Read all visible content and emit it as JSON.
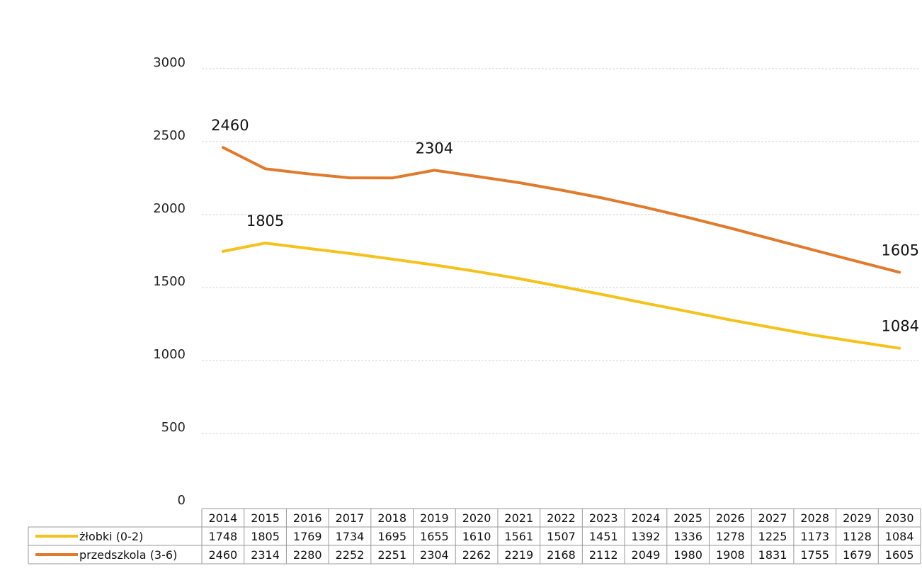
{
  "chart_data": {
    "type": "line",
    "title": "",
    "xlabel": "",
    "ylabel": "",
    "ylim": [
      0,
      3000
    ],
    "yticks": [
      0,
      500,
      1000,
      1500,
      2000,
      2500,
      3000
    ],
    "grid": true,
    "legend": "data-table-left",
    "x": [
      2014,
      2015,
      2016,
      2017,
      2018,
      2019,
      2020,
      2021,
      2022,
      2023,
      2024,
      2025,
      2026,
      2027,
      2028,
      2029,
      2030
    ],
    "series": [
      {
        "name": "żłobki (0-2)",
        "color": "#f4c21a",
        "values": [
          1748,
          1805,
          1769,
          1734,
          1695,
          1655,
          1610,
          1561,
          1507,
          1451,
          1392,
          1336,
          1278,
          1225,
          1173,
          1128,
          1084
        ],
        "labeled_points": [
          1,
          16
        ]
      },
      {
        "name": "przedszkola (3-6)",
        "color": "#e07a2c",
        "values": [
          2460,
          2314,
          2280,
          2252,
          2251,
          2304,
          2262,
          2219,
          2168,
          2112,
          2049,
          1980,
          1908,
          1831,
          1755,
          1679,
          1605
        ],
        "labeled_points": [
          0,
          5,
          16
        ]
      }
    ]
  }
}
